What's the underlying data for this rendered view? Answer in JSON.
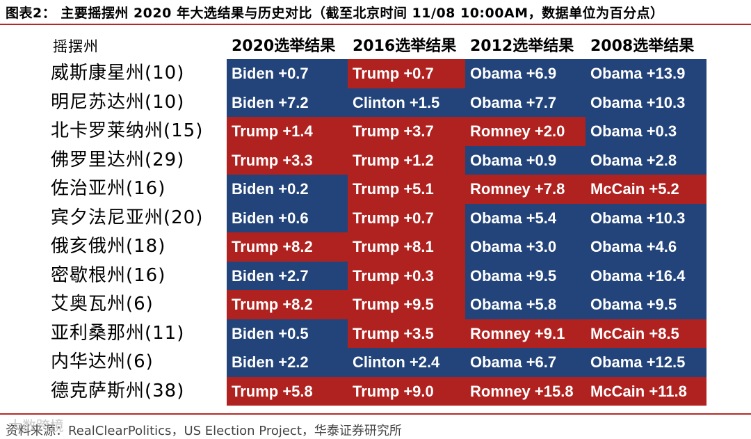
{
  "title": "图表2：  主要摇摆州 2020 年大选结果与历史对比（截至北京时间 11/08 10:00AM，数据单位为百分点）",
  "table": {
    "state_header": "摇摆州",
    "columns": [
      "2020选举结果",
      "2016选举结果",
      "2012选举结果",
      "2008选举结果"
    ],
    "rows": [
      {
        "state": "威斯康星州(10)",
        "cells": [
          {
            "text": "Biden +0.7",
            "party": "dem"
          },
          {
            "text": "Trump +0.7",
            "party": "rep"
          },
          {
            "text": "Obama +6.9",
            "party": "dem"
          },
          {
            "text": "Obama +13.9",
            "party": "dem"
          }
        ]
      },
      {
        "state": "明尼苏达州(10)",
        "cells": [
          {
            "text": "Biden +7.2",
            "party": "dem"
          },
          {
            "text": "Clinton +1.5",
            "party": "dem"
          },
          {
            "text": "Obama +7.7",
            "party": "dem"
          },
          {
            "text": "Obama +10.3",
            "party": "dem"
          }
        ]
      },
      {
        "state": "北卡罗莱纳州(15)",
        "cells": [
          {
            "text": "Trump +1.4",
            "party": "rep"
          },
          {
            "text": "Trump +3.7",
            "party": "rep"
          },
          {
            "text": "Romney +2.0",
            "party": "rep"
          },
          {
            "text": "Obama +0.3",
            "party": "dem"
          }
        ]
      },
      {
        "state": "佛罗里达州(29)",
        "cells": [
          {
            "text": "Trump +3.3",
            "party": "rep"
          },
          {
            "text": "Trump +1.2",
            "party": "rep"
          },
          {
            "text": "Obama +0.9",
            "party": "dem"
          },
          {
            "text": "Obama +2.8",
            "party": "dem"
          }
        ]
      },
      {
        "state": "佐治亚州(16)",
        "cells": [
          {
            "text": "Biden +0.2",
            "party": "dem"
          },
          {
            "text": "Trump +5.1",
            "party": "rep"
          },
          {
            "text": "Romney +7.8",
            "party": "rep"
          },
          {
            "text": "McCain +5.2",
            "party": "rep"
          }
        ]
      },
      {
        "state": "宾夕法尼亚州(20)",
        "cells": [
          {
            "text": "Biden +0.6",
            "party": "dem"
          },
          {
            "text": "Trump +0.7",
            "party": "rep"
          },
          {
            "text": "Obama +5.4",
            "party": "dem"
          },
          {
            "text": "Obama +10.3",
            "party": "dem"
          }
        ]
      },
      {
        "state": "俄亥俄州(18)",
        "cells": [
          {
            "text": "Trump +8.2",
            "party": "rep"
          },
          {
            "text": "Trump +8.1",
            "party": "rep"
          },
          {
            "text": "Obama +3.0",
            "party": "dem"
          },
          {
            "text": "Obama +4.6",
            "party": "dem"
          }
        ]
      },
      {
        "state": "密歇根州(16)",
        "cells": [
          {
            "text": "Biden +2.7",
            "party": "dem"
          },
          {
            "text": "Trump +0.3",
            "party": "rep"
          },
          {
            "text": "Obama +9.5",
            "party": "dem"
          },
          {
            "text": "Obama +16.4",
            "party": "dem"
          }
        ]
      },
      {
        "state": "艾奥瓦州(6)",
        "cells": [
          {
            "text": "Trump +8.2",
            "party": "rep"
          },
          {
            "text": "Trump +9.5",
            "party": "rep"
          },
          {
            "text": "Obama +5.8",
            "party": "dem"
          },
          {
            "text": "Obama +9.5",
            "party": "dem"
          }
        ]
      },
      {
        "state": "亚利桑那州(11)",
        "cells": [
          {
            "text": "Biden +0.5",
            "party": "dem"
          },
          {
            "text": "Trump +3.5",
            "party": "rep"
          },
          {
            "text": "Romney +9.1",
            "party": "rep"
          },
          {
            "text": "McCain +8.5",
            "party": "rep"
          }
        ]
      },
      {
        "state": "内华达州(6)",
        "cells": [
          {
            "text": "Biden +2.2",
            "party": "dem"
          },
          {
            "text": "Clinton +2.4",
            "party": "dem"
          },
          {
            "text": "Obama +6.7",
            "party": "dem"
          },
          {
            "text": "Obama +12.5",
            "party": "dem"
          }
        ]
      },
      {
        "state": "德克萨斯州(38)",
        "cells": [
          {
            "text": "Trump +5.8",
            "party": "rep"
          },
          {
            "text": "Trump +9.0",
            "party": "rep"
          },
          {
            "text": "Romney +15.8",
            "party": "rep"
          },
          {
            "text": "McCain +11.8",
            "party": "rep"
          }
        ]
      }
    ]
  },
  "colors": {
    "dem": "#22447a",
    "rep": "#b0221f",
    "rule": "#b22a26"
  },
  "source": "资料来源：RealClearPolitics，US Election Project，华泰证券研究所",
  "watermark": "大数跨境"
}
